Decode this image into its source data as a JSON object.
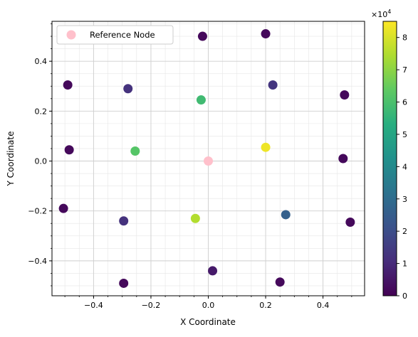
{
  "chart_data": {
    "type": "scatter",
    "xlabel": "X Coordinate",
    "ylabel": "Y Coordinate",
    "xlim": [
      -0.545,
      0.545
    ],
    "ylim": [
      -0.54,
      0.56
    ],
    "x_ticks": [
      -0.4,
      -0.2,
      0.0,
      0.2,
      0.4
    ],
    "x_tick_labels": [
      "−0.4",
      "−0.2",
      "0.0",
      "0.2",
      "0.4"
    ],
    "y_ticks": [
      -0.4,
      -0.2,
      0.0,
      0.2,
      0.4
    ],
    "y_tick_labels": [
      "−0.4",
      "−0.2",
      "0.0",
      "0.2",
      "0.4"
    ],
    "grid": true,
    "minor_grid": true,
    "legend": {
      "position": "top-left",
      "entries": [
        {
          "label": "Reference Node",
          "color": "#ffc0cb"
        }
      ]
    },
    "reference_node": {
      "x": 0.0,
      "y": 0.0,
      "color": "#ffc0cb"
    },
    "colorbar": {
      "colormap": "viridis",
      "range": [
        0,
        85000
      ],
      "ticks": [
        0,
        1,
        2,
        3,
        4,
        5,
        6,
        7,
        8
      ],
      "tick_labels": [
        "0",
        "1",
        "2",
        "3",
        "4",
        "5",
        "6",
        "7",
        "8"
      ],
      "multiplier_label": "×10",
      "multiplier_exponent": "4"
    },
    "points": [
      {
        "x": -0.02,
        "y": 0.5,
        "value": 2000
      },
      {
        "x": 0.2,
        "y": 0.51,
        "value": 2000
      },
      {
        "x": -0.49,
        "y": 0.305,
        "value": 2000
      },
      {
        "x": -0.28,
        "y": 0.29,
        "value": 12000
      },
      {
        "x": 0.225,
        "y": 0.305,
        "value": 13000
      },
      {
        "x": 0.475,
        "y": 0.265,
        "value": 2000
      },
      {
        "x": -0.025,
        "y": 0.245,
        "value": 58000
      },
      {
        "x": -0.485,
        "y": 0.045,
        "value": 2000
      },
      {
        "x": -0.255,
        "y": 0.04,
        "value": 62000
      },
      {
        "x": 0.2,
        "y": 0.055,
        "value": 83000
      },
      {
        "x": 0.47,
        "y": 0.01,
        "value": 2000
      },
      {
        "x": -0.505,
        "y": -0.19,
        "value": 2000
      },
      {
        "x": -0.295,
        "y": -0.24,
        "value": 12000
      },
      {
        "x": -0.045,
        "y": -0.23,
        "value": 75000
      },
      {
        "x": 0.27,
        "y": -0.215,
        "value": 26000
      },
      {
        "x": 0.495,
        "y": -0.245,
        "value": 2000
      },
      {
        "x": 0.015,
        "y": -0.44,
        "value": 6000
      },
      {
        "x": -0.295,
        "y": -0.49,
        "value": 2000
      },
      {
        "x": 0.25,
        "y": -0.485,
        "value": 2000
      }
    ]
  }
}
